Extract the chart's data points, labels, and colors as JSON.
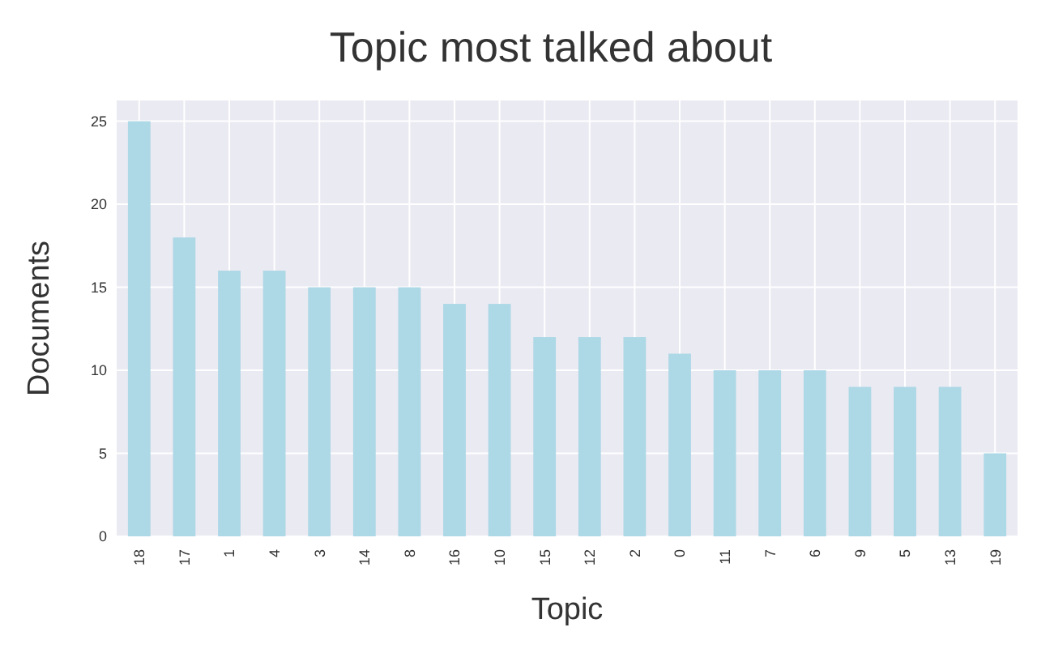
{
  "chart_data": {
    "type": "bar",
    "title": "Topic most talked about",
    "xlabel": "Topic",
    "ylabel": "Documents",
    "categories": [
      "18",
      "17",
      "1",
      "4",
      "3",
      "14",
      "8",
      "16",
      "10",
      "15",
      "12",
      "2",
      "0",
      "11",
      "7",
      "6",
      "9",
      "5",
      "13",
      "19"
    ],
    "values": [
      25,
      18,
      16,
      16,
      15,
      15,
      15,
      14,
      14,
      12,
      12,
      12,
      11,
      10,
      10,
      10,
      9,
      9,
      9,
      5
    ],
    "color": "#add8e6",
    "ylim": [
      0,
      26.25
    ],
    "yticks": [
      0,
      5,
      10,
      15,
      20,
      25
    ],
    "grid": true
  }
}
